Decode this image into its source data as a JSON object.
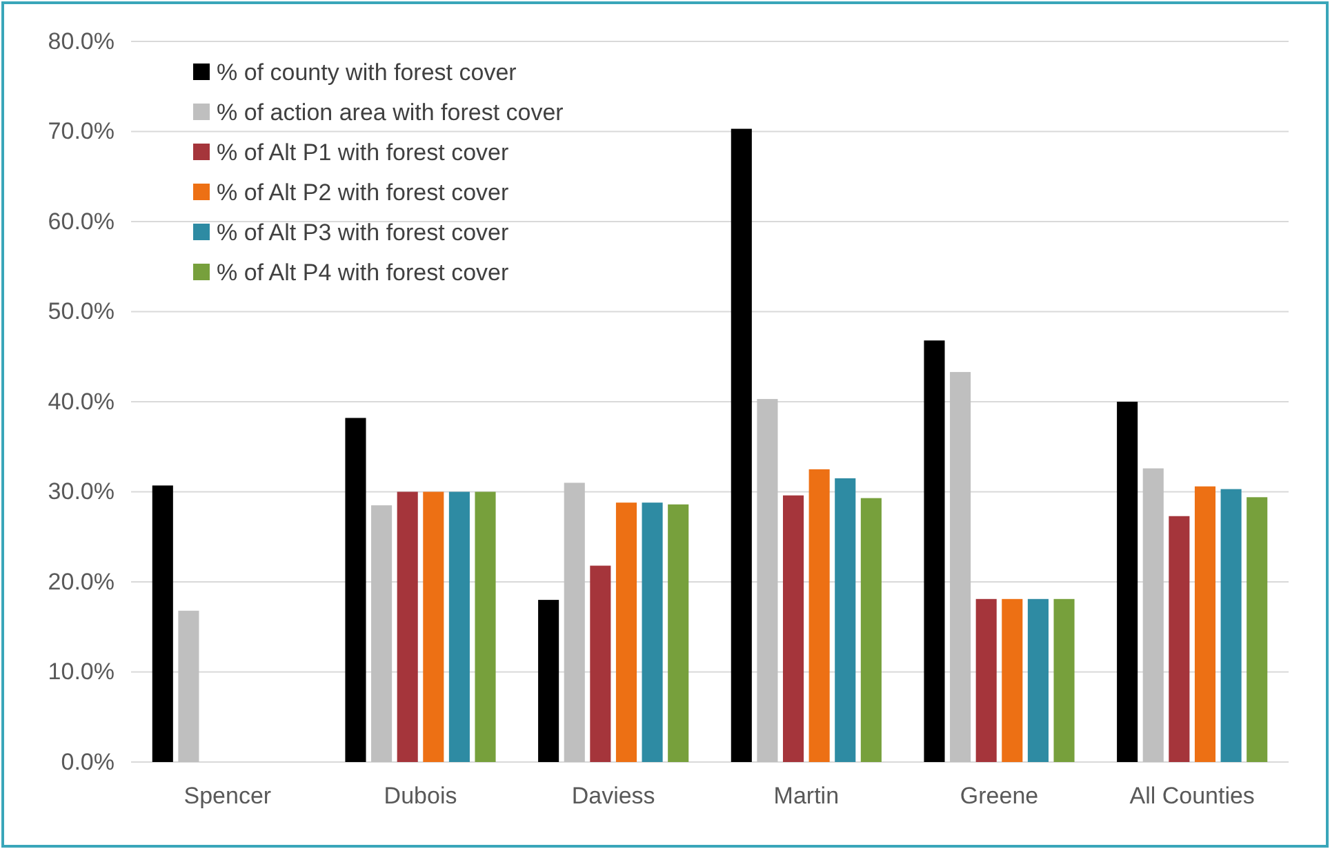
{
  "chart_data": {
    "type": "bar",
    "categories": [
      "Spencer",
      "Dubois",
      "Daviess",
      "Martin",
      "Greene",
      "All Counties"
    ],
    "series": [
      {
        "name": "% of county with forest cover",
        "color": "#000000",
        "values": [
          30.7,
          38.2,
          18.0,
          70.3,
          46.8,
          40.0
        ]
      },
      {
        "name": "% of action area with forest cover",
        "color": "#bfbfbf",
        "values": [
          16.8,
          28.5,
          31.0,
          40.3,
          43.3,
          32.6
        ]
      },
      {
        "name": "% of Alt P1 with forest cover",
        "color": "#a5353b",
        "values": [
          null,
          30.0,
          21.8,
          29.6,
          18.1,
          27.3
        ]
      },
      {
        "name": "% of Alt P2 with forest cover",
        "color": "#ed7014",
        "values": [
          null,
          30.0,
          28.8,
          32.5,
          18.1,
          30.6
        ]
      },
      {
        "name": "% of Alt P3 with forest cover",
        "color": "#2e8ba3",
        "values": [
          null,
          30.0,
          28.8,
          31.5,
          18.1,
          30.3
        ]
      },
      {
        "name": "% of Alt P4 with forest cover",
        "color": "#77a03c",
        "values": [
          null,
          30.0,
          28.6,
          29.3,
          18.1,
          29.4
        ]
      }
    ],
    "ylim": [
      0,
      80
    ],
    "yticks": [
      {
        "value": 0,
        "label": "0.0%"
      },
      {
        "value": 10,
        "label": "10.0%"
      },
      {
        "value": 20,
        "label": "20.0%"
      },
      {
        "value": 30,
        "label": "30.0%"
      },
      {
        "value": 40,
        "label": "40.0%"
      },
      {
        "value": 50,
        "label": "50.0%"
      },
      {
        "value": 60,
        "label": "60.0%"
      },
      {
        "value": 70,
        "label": "70.0%"
      },
      {
        "value": 80,
        "label": "80.0%"
      }
    ],
    "grid": "y",
    "legend": "top left"
  }
}
